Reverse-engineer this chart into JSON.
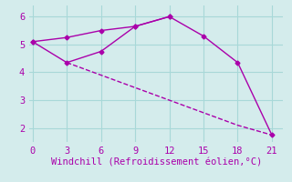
{
  "line1_x": [
    0,
    3,
    6,
    9,
    12
  ],
  "line1_y": [
    5.1,
    5.25,
    5.5,
    5.65,
    6.0
  ],
  "line1_style": "-",
  "line2_x": [
    3,
    6,
    9,
    12,
    15,
    18,
    21
  ],
  "line2_y": [
    4.35,
    3.9,
    3.45,
    3.0,
    2.55,
    2.1,
    1.75
  ],
  "line2_style": "--",
  "line3_x": [
    0,
    3,
    6,
    9,
    12,
    15,
    18,
    21
  ],
  "line3_y": [
    5.1,
    4.35,
    4.75,
    5.65,
    6.0,
    5.3,
    4.35,
    1.75
  ],
  "line3_style": "-",
  "color": "#aa00aa",
  "marker": "D",
  "marker_size": 2.5,
  "xlabel": "Windchill (Refroidissement éolien,°C)",
  "xlim": [
    -0.3,
    22
  ],
  "ylim": [
    1.5,
    6.4
  ],
  "xticks": [
    0,
    3,
    6,
    9,
    12,
    15,
    18,
    21
  ],
  "yticks": [
    2,
    3,
    4,
    5,
    6
  ],
  "grid_color": "#a8d8d8",
  "bg_color": "#d4ecec",
  "xlabel_fontsize": 7.5,
  "tick_fontsize": 7.5,
  "linewidth": 1.0
}
